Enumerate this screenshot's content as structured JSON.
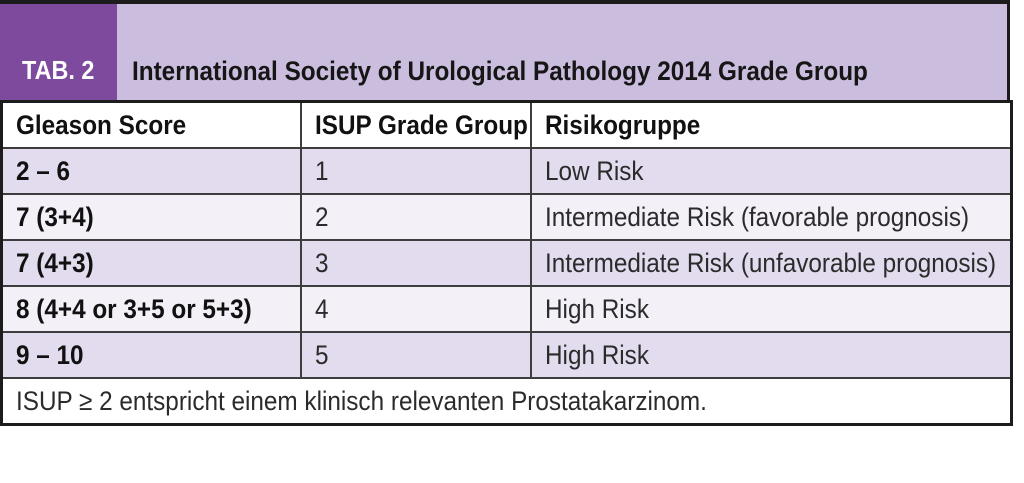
{
  "header": {
    "tab_label": "TAB. 2",
    "title": "International Society of Urological Pathology 2014 Grade Group"
  },
  "table": {
    "columns": [
      "Gleason Score",
      "ISUP Grade Group",
      "Risikogruppe"
    ],
    "rows": [
      {
        "gleason": "2 – 6",
        "isup": "1",
        "risk": "Low Risk"
      },
      {
        "gleason": "7 (3+4)",
        "isup": "2",
        "risk": "Intermediate Risk (favorable prognosis)"
      },
      {
        "gleason": "7 (4+3)",
        "isup": "3",
        "risk": "Intermediate Risk (unfavorable prognosis)"
      },
      {
        "gleason": "8 (4+4 or 3+5 or 5+3)",
        "isup": "4",
        "risk": "High Risk"
      },
      {
        "gleason": "9 – 10",
        "isup": "5",
        "risk": "High Risk"
      }
    ],
    "footnote": "ISUP ≥ 2 entspricht einem klinisch relevanten Prostatakarzinom."
  },
  "colors": {
    "purple-dark": "#7d4a9e",
    "purple-light": "#cbbdde",
    "row-dark": "#e2dcee",
    "row-light": "#f3f0f8",
    "rule": "#1c1c1c"
  }
}
